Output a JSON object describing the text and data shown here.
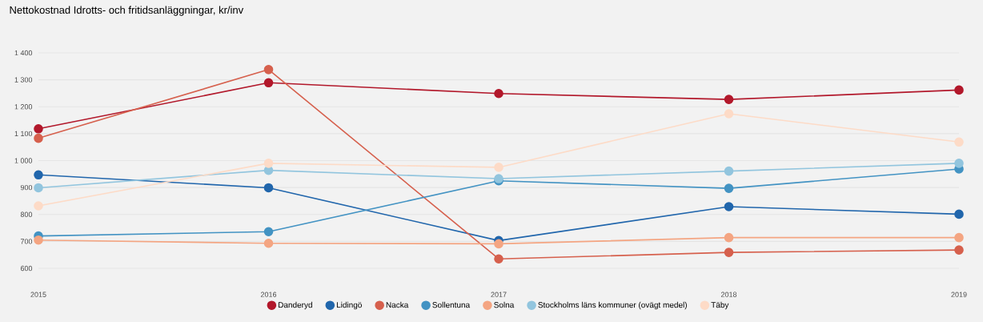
{
  "chart_data": {
    "type": "line",
    "title": "Nettokostnad Idrotts- och fritidsanläggningar, kr/inv",
    "categories": [
      "2015",
      "2016",
      "2017",
      "2018",
      "2019"
    ],
    "series": [
      {
        "name": "Danderyd",
        "color": "#b2182b",
        "values": [
          1118,
          1289,
          1249,
          1227,
          1262
        ]
      },
      {
        "name": "Lidingö",
        "color": "#2166ac",
        "values": [
          947,
          899,
          703,
          829,
          801
        ]
      },
      {
        "name": "Nacka",
        "color": "#d6604d",
        "values": [
          1083,
          1338,
          635,
          659,
          668
        ]
      },
      {
        "name": "Sollentuna",
        "color": "#4393c3",
        "values": [
          720,
          736,
          925,
          897,
          969
        ]
      },
      {
        "name": "Solna",
        "color": "#f4a582",
        "values": [
          705,
          693,
          691,
          714,
          714
        ]
      },
      {
        "name": "Stockholms läns kommuner (ovägt medel)",
        "color": "#92c5de",
        "values": [
          899,
          964,
          933,
          961,
          990
        ]
      },
      {
        "name": "Täby",
        "color": "#fddbc7",
        "values": [
          832,
          990,
          975,
          1174,
          1069
        ]
      }
    ],
    "ylim": [
      600,
      1400
    ],
    "yticks": [
      600,
      700,
      800,
      900,
      {
        "value": 1000,
        "label": "1 000"
      },
      {
        "value": 1100,
        "label": "1 100"
      },
      {
        "value": 1200,
        "label": "1 200"
      },
      {
        "value": 1300,
        "label": "1 300"
      },
      {
        "value": 1400,
        "label": "1 400"
      }
    ],
    "grid": "y",
    "legend": "bottom",
    "marker": "circle",
    "line_style": "solid"
  }
}
